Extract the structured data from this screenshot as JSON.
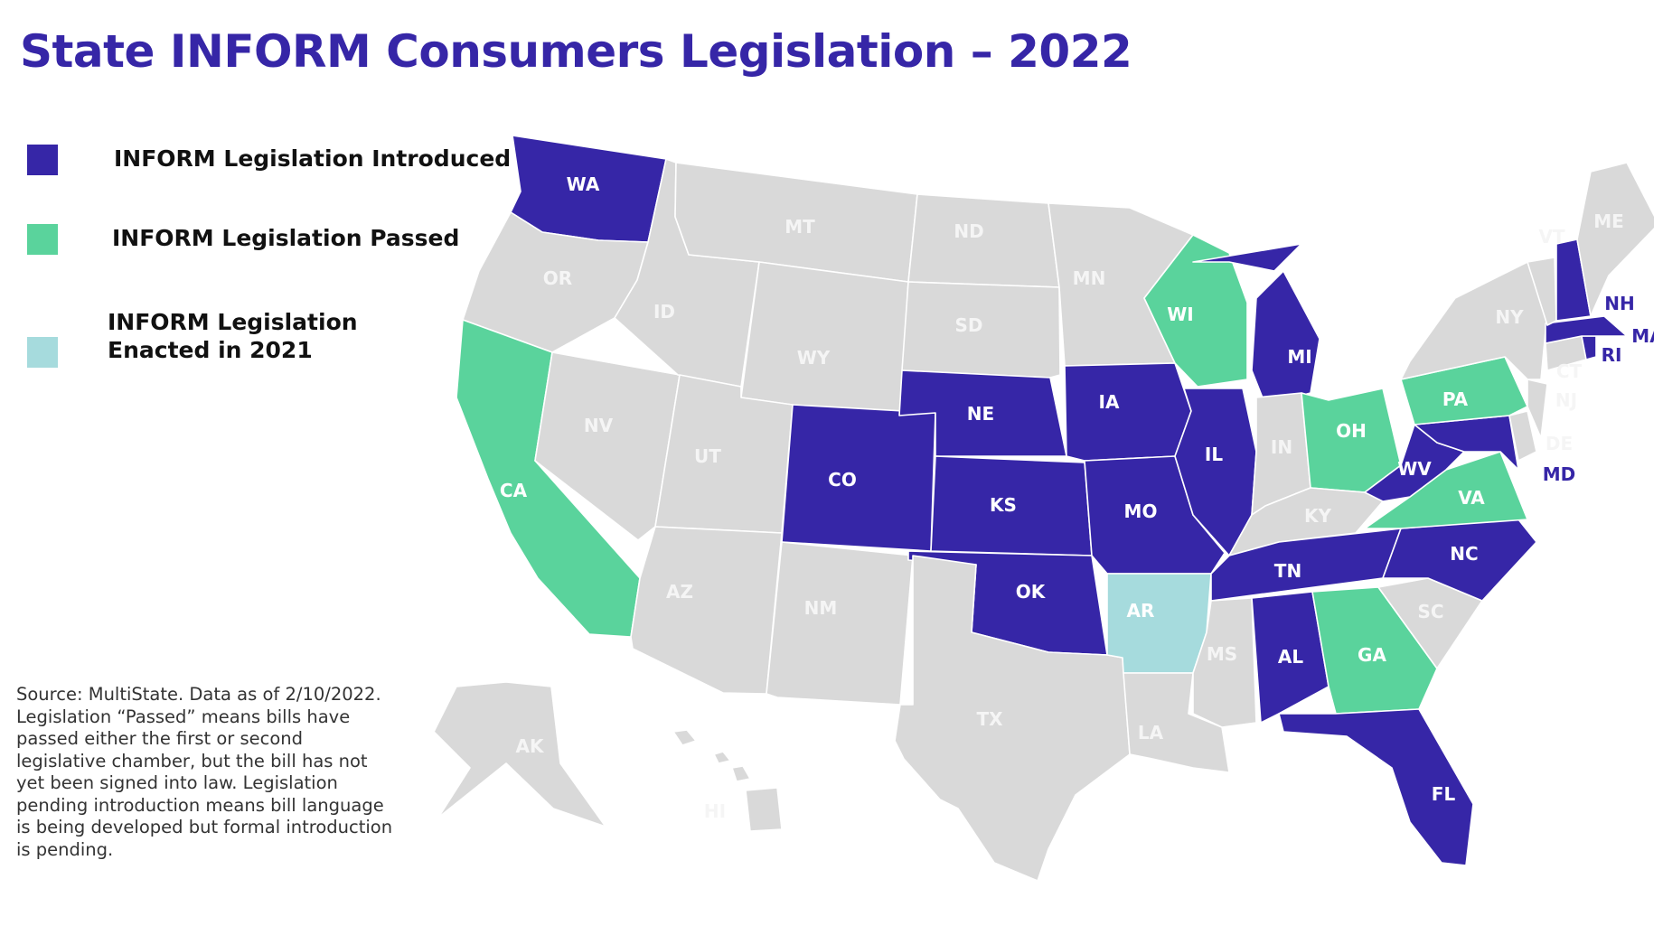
{
  "title": "State INFORM Consumers Legislation – 2022",
  "colors": {
    "introduced": "#3626a7",
    "passed": "#5ad39c",
    "enacted": "#a6dbdd",
    "none": "#d9d9d9",
    "label_on_color": "#ffffff",
    "label_on_gray": "#f5f5f5",
    "label_outside": "#3626a7"
  },
  "legend": [
    {
      "label": "INFORM Legislation Introduced",
      "color": "#3626a7"
    },
    {
      "label": "INFORM Legislation Passed",
      "color": "#5ad39c"
    },
    {
      "label": "INFORM Legislation Enacted in 2021",
      "color": "#a6dbdd"
    }
  ],
  "source": "Source: MultiState. Data as of 2/10/2022. Legislation “Passed” means bills have passed either the first or second legislative chamber, but the bill has not yet been signed into law. Legislation pending introduction means bill language is being developed but formal introduction is pending.",
  "states": {
    "WA": "introduced",
    "OR": "none",
    "CA": "passed",
    "NV": "none",
    "ID": "none",
    "MT": "none",
    "WY": "none",
    "UT": "none",
    "AZ": "none",
    "CO": "introduced",
    "NM": "none",
    "ND": "none",
    "SD": "none",
    "NE": "introduced",
    "KS": "introduced",
    "OK": "introduced",
    "TX": "none",
    "MN": "none",
    "IA": "introduced",
    "MO": "introduced",
    "AR": "enacted",
    "LA": "none",
    "WI": "passed",
    "IL": "introduced",
    "MI": "introduced",
    "IN": "none",
    "OH": "passed",
    "KY": "none",
    "TN": "introduced",
    "MS": "none",
    "AL": "introduced",
    "GA": "passed",
    "FL": "introduced",
    "SC": "none",
    "NC": "introduced",
    "VA": "passed",
    "WV": "introduced",
    "MD": "introduced",
    "DE": "none",
    "PA": "passed",
    "NJ": "none",
    "NY": "none",
    "CT": "none",
    "RI": "introduced",
    "MA": "introduced",
    "VT": "none",
    "NH": "introduced",
    "ME": "none",
    "AK": "none",
    "HI": "none"
  }
}
